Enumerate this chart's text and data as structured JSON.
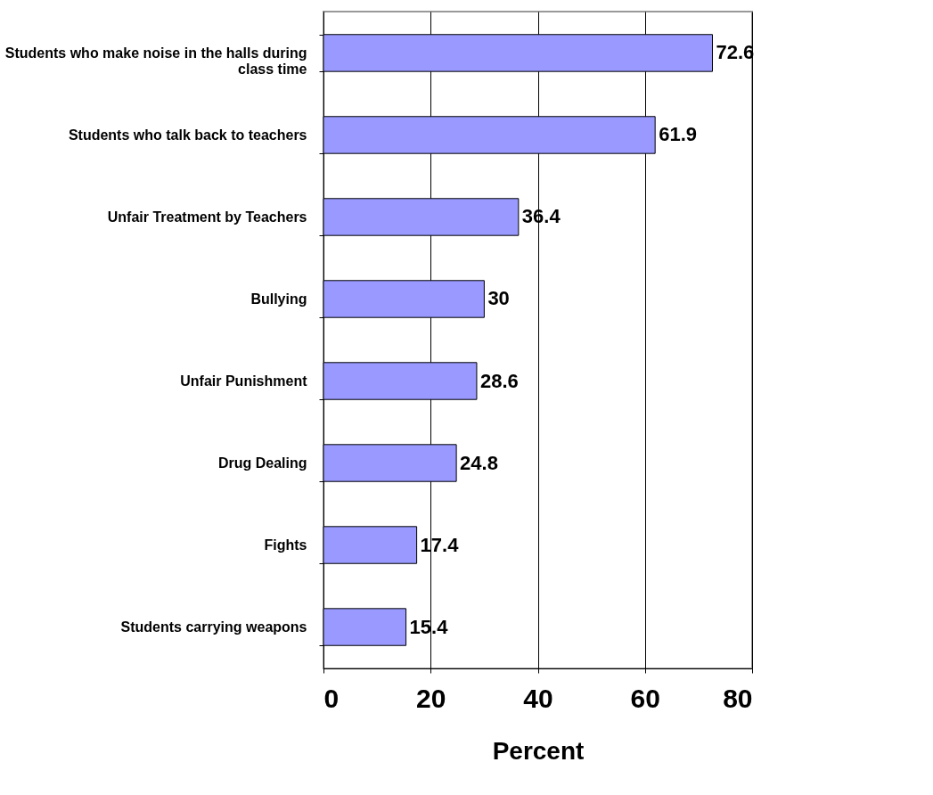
{
  "chart_data": {
    "type": "bar",
    "orientation": "horizontal",
    "xlabel": "Percent",
    "categories": [
      "Students who make noise in the halls during class time",
      "Students who talk back to teachers",
      "Unfair Treatment by Teachers",
      "Bullying",
      "Unfair Punishment",
      "Drug Dealing",
      "Fights",
      "Students carrying weapons"
    ],
    "values": [
      72.6,
      61.9,
      36.4,
      30,
      28.6,
      24.8,
      17.4,
      15.4
    ],
    "color": "#9999ff",
    "xlim": [
      0,
      80
    ],
    "xticks": [
      0,
      20,
      40,
      60,
      80
    ],
    "grid": "x",
    "data_labels": true
  }
}
